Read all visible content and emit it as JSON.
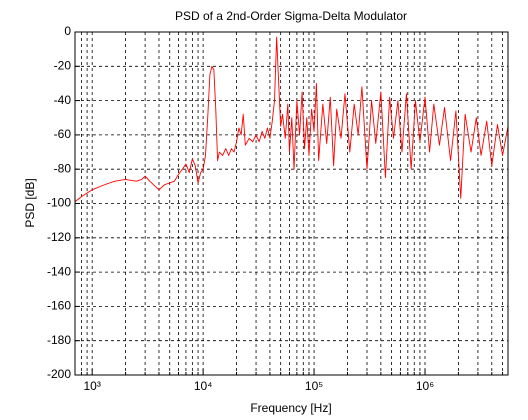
{
  "chart_data": {
    "type": "line",
    "title": "PSD of a 2nd-Order Sigma-Delta Modulator",
    "xlabel": "Frequency [Hz]",
    "ylabel": "PSD [dB]",
    "xscale": "log",
    "grid": true,
    "xlim": [
      700,
      5600000
    ],
    "ylim": [
      -200,
      0
    ],
    "xticks": [
      {
        "value": 1000,
        "label": "10³"
      },
      {
        "value": 10000,
        "label": "10⁴"
      },
      {
        "value": 100000,
        "label": "10⁵"
      },
      {
        "value": 1000000,
        "label": "10⁶"
      }
    ],
    "xminorticks": [
      800,
      900,
      2000,
      3000,
      4000,
      5000,
      6000,
      7000,
      8000,
      9000,
      20000,
      30000,
      40000,
      50000,
      60000,
      70000,
      80000,
      90000,
      200000,
      300000,
      400000,
      500000,
      600000,
      700000,
      800000,
      900000,
      2000000,
      3000000,
      4000000,
      5000000
    ],
    "yticks": [
      -200,
      -180,
      -160,
      -140,
      -120,
      -100,
      -80,
      -60,
      -40,
      -20,
      0
    ],
    "series": [
      {
        "color": "#ff0000",
        "x": [
          700,
          800,
          1000,
          1300,
          1600,
          2000,
          2500,
          2800,
          3000,
          3300,
          3700,
          4000,
          4500,
          5000,
          5500,
          6000,
          6500,
          7000,
          7500,
          8000,
          8500,
          9000,
          9500,
          10000,
          10500,
          11000,
          11500,
          12000,
          12500,
          13000,
          13500,
          14000,
          15000,
          16000,
          17000,
          18000,
          19000,
          20000,
          21000,
          22000,
          23000,
          24000,
          26000,
          28000,
          30000,
          32000,
          34000,
          36000,
          38000,
          40000,
          42000,
          44000,
          46000,
          48000,
          50000,
          52000,
          55000,
          58000,
          60000,
          63000,
          66000,
          70000,
          74000,
          78000,
          82000,
          86000,
          90000,
          95000,
          100000,
          105000,
          110000,
          120000,
          130000,
          140000,
          150000,
          160000,
          175000,
          190000,
          210000,
          230000,
          250000,
          270000,
          300000,
          330000,
          360000,
          400000,
          440000,
          480000,
          520000,
          570000,
          620000,
          680000,
          750000,
          820000,
          900000,
          1000000,
          1100000,
          1200000,
          1350000,
          1500000,
          1700000,
          1900000,
          2100000,
          2300000,
          2600000,
          2900000,
          3200000,
          3600000,
          4000000,
          4500000,
          5000000,
          5600000
        ],
        "values": [
          -99,
          -96,
          -92,
          -89,
          -87,
          -86,
          -87,
          -86,
          -84,
          -87,
          -90,
          -92,
          -89,
          -88,
          -87,
          -83,
          -80,
          -77,
          -82,
          -74,
          -78,
          -88,
          -82,
          -80,
          -72,
          -50,
          -25,
          -20,
          -22,
          -45,
          -75,
          -70,
          -72,
          -68,
          -72,
          -68,
          -70,
          -64,
          -56,
          -60,
          -48,
          -66,
          -62,
          -64,
          -60,
          -64,
          -58,
          -62,
          -56,
          -62,
          -52,
          -40,
          -3,
          -30,
          -55,
          -48,
          -62,
          -42,
          -70,
          -50,
          -80,
          -40,
          -60,
          -35,
          -68,
          -50,
          -72,
          -45,
          -58,
          -30,
          -75,
          -42,
          -65,
          -38,
          -78,
          -45,
          -62,
          -36,
          -70,
          -42,
          -60,
          -32,
          -80,
          -40,
          -65,
          -35,
          -85,
          -38,
          -62,
          -40,
          -70,
          -36,
          -80,
          -40,
          -64,
          -38,
          -70,
          -42,
          -66,
          -44,
          -75,
          -46,
          -97,
          -48,
          -70,
          -50,
          -72,
          -52,
          -78,
          -54,
          -72,
          -55
        ]
      }
    ]
  }
}
